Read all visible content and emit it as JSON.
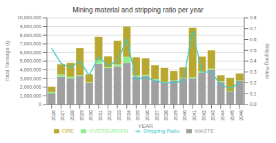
{
  "chart_data": {
    "type": "bar",
    "title": "Mining material and stripping ratio per year",
    "xlabel": "YEAR",
    "ylabel": "Total Tonnage (t)",
    "y2label": "Stripping Ratio",
    "categories": [
      "2026",
      "2027",
      "2028",
      "2029",
      "2030",
      "2031",
      "2032",
      "2033",
      "2034",
      "2035",
      "2036",
      "2037",
      "2038",
      "2039",
      "2040",
      "2041",
      "2042",
      "2043",
      "2044",
      "2045",
      "2046"
    ],
    "stacked": true,
    "series": [
      {
        "name": "WASTE",
        "type": "bar",
        "color": "#a0a0a0",
        "values": [
          1300000,
          3200000,
          3000000,
          3300000,
          2500000,
          4700000,
          4200000,
          4400000,
          4800000,
          3200000,
          3300000,
          2800000,
          2500000,
          2700000,
          3000000,
          3000000,
          3700000,
          4000000,
          2600000,
          1500000,
          2700000
        ]
      },
      {
        "name": "OVERBURDEN",
        "type": "bar",
        "color": "#90ee90",
        "values": [
          150000,
          250000,
          200000,
          100000,
          80000,
          400000,
          150000,
          250000,
          700000,
          150000,
          130000,
          130000,
          130000,
          80000,
          80000,
          150000,
          130000,
          150000,
          80000,
          80000,
          80000
        ]
      },
      {
        "name": "ORE",
        "type": "bar",
        "color": "#b8a830",
        "values": [
          600000,
          1200000,
          1600000,
          3100000,
          900000,
          2700000,
          1200000,
          2700000,
          3500000,
          2100000,
          1900000,
          1600000,
          1600000,
          1100000,
          1200000,
          5700000,
          1700000,
          2100000,
          700000,
          1500000,
          800000
        ]
      },
      {
        "name": "Stripping Ratio",
        "type": "line",
        "axis": "y2",
        "color": "#40c8c8",
        "values": [
          0.52,
          0.38,
          0.34,
          0.4,
          0.27,
          0.44,
          0.36,
          0.4,
          0.6,
          0.23,
          0.25,
          0.22,
          0.2,
          0.2,
          0.22,
          0.68,
          0.3,
          0.3,
          0.18,
          0.15,
          0.2
        ]
      }
    ],
    "ylim": [
      0,
      10000000
    ],
    "yticks": [
      0,
      {
        "value": 1000000,
        "label": "1,000,000"
      },
      {
        "value": 2000000,
        "label": "2,000,000"
      },
      {
        "value": 3000000,
        "label": "3,000,000"
      },
      {
        "value": 4000000,
        "label": "4,000,000"
      },
      {
        "value": 5000000,
        "label": "5,000,000"
      },
      {
        "value": 6000000,
        "label": "6,000,000"
      },
      {
        "value": 7000000,
        "label": "7,000,000"
      },
      {
        "value": 8000000,
        "label": "8,000,000"
      },
      {
        "value": 9000000,
        "label": "9,000,000"
      },
      {
        "value": 10000000,
        "label": "10,000,000"
      }
    ],
    "y2lim": [
      0.0,
      0.8
    ],
    "y2ticks": [
      {
        "value": 0.0,
        "label": "0.0"
      },
      0.1,
      0.2,
      0.3,
      0.4,
      0.5,
      0.6,
      0.7,
      0.8
    ],
    "grid": true,
    "legend": "bottom"
  }
}
